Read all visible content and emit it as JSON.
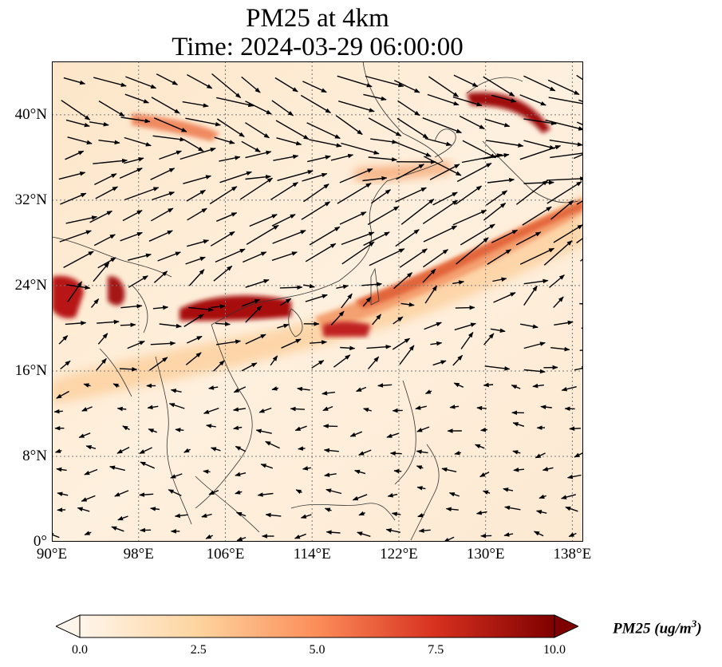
{
  "title": {
    "line1": "PM25 at 4km",
    "line2": "Time: 2024-03-29 06:00:00"
  },
  "map": {
    "variable": "PM25",
    "level": "4km",
    "lon_range": [
      90,
      139
    ],
    "lat_range": [
      0,
      45
    ],
    "lat_ticks": [
      {
        "value": 0,
        "label": "0°"
      },
      {
        "value": 8,
        "label": "8°N"
      },
      {
        "value": 16,
        "label": "16°N"
      },
      {
        "value": 24,
        "label": "24°N"
      },
      {
        "value": 32,
        "label": "32°N"
      },
      {
        "value": 40,
        "label": "40°N"
      }
    ],
    "lon_ticks": [
      {
        "value": 90,
        "label": "90°E"
      },
      {
        "value": 98,
        "label": "98°E"
      },
      {
        "value": 106,
        "label": "106°E"
      },
      {
        "value": 114,
        "label": "114°E"
      },
      {
        "value": 122,
        "label": "122°E"
      },
      {
        "value": 130,
        "label": "130°E"
      },
      {
        "value": 138,
        "label": "138°E"
      }
    ],
    "gridlines": true,
    "wind_vectors": true,
    "colors": {
      "low": "#fff5eb",
      "mid": "#fdae6b",
      "high": "#d94801",
      "max": "#7f0000",
      "land_outline": "#333333",
      "arrow": "#000000"
    }
  },
  "colorbar": {
    "ticks": [
      "0.0",
      "2.5",
      "5.0",
      "7.5",
      "10.0"
    ],
    "vmin": 0,
    "vmax": 10,
    "extend": "both",
    "label_main": "PM25 (ug/m",
    "label_sup": "3",
    "label_end": ")"
  }
}
